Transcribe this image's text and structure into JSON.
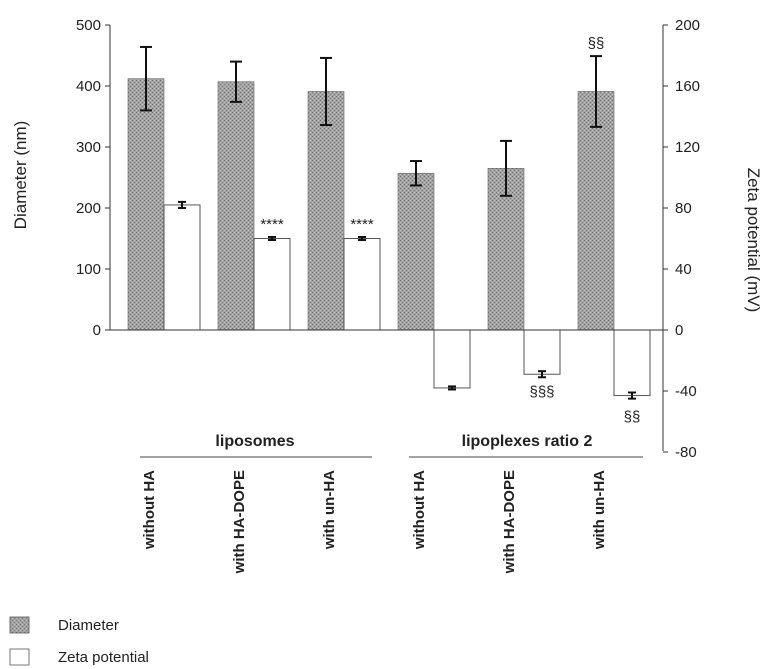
{
  "chart_data": {
    "type": "bar",
    "categories": [
      "without HA",
      "with HA-DOPE",
      "with un-HA",
      "without HA",
      "with HA-DOPE",
      "with un-HA"
    ],
    "groups": [
      {
        "label": "liposomes",
        "categories": [
          0,
          1,
          2
        ]
      },
      {
        "label": "lipoplexes ratio 2",
        "categories": [
          3,
          4,
          5
        ]
      }
    ],
    "series": [
      {
        "name": "Diameter",
        "axis": "left",
        "unit": "nm",
        "color": "#9a9a9a",
        "values": [
          412,
          407,
          391,
          257,
          265,
          391
        ],
        "errors": [
          52,
          33,
          55,
          20,
          45,
          58
        ]
      },
      {
        "name": "Zeta potential",
        "axis": "right",
        "unit": "mV",
        "color": "#ffffff",
        "values": [
          82,
          60,
          60,
          -38,
          -29,
          -43
        ],
        "errors": [
          2,
          1,
          1,
          1,
          2,
          2
        ]
      }
    ],
    "annotations": [
      {
        "category": 1,
        "series": 1,
        "text": "****"
      },
      {
        "category": 2,
        "series": 1,
        "text": "****"
      },
      {
        "category": 4,
        "series": 1,
        "text": "§§§"
      },
      {
        "category": 5,
        "series": 1,
        "text": "§§"
      },
      {
        "category": 5,
        "series": 0,
        "text": "§§"
      }
    ],
    "ylabel": "Diameter (nm)",
    "y2label": "Zeta potential (mV)",
    "ylim": [
      0,
      500
    ],
    "yticks": [
      0,
      100,
      200,
      300,
      400,
      500
    ],
    "y2lim": [
      -80,
      200
    ],
    "y2ticks": [
      -80,
      -40,
      0,
      40,
      80,
      120,
      160,
      200
    ],
    "grid": false,
    "legend": {
      "position": "bottom-left",
      "entries": [
        "Diameter",
        "Zeta potential"
      ]
    }
  }
}
